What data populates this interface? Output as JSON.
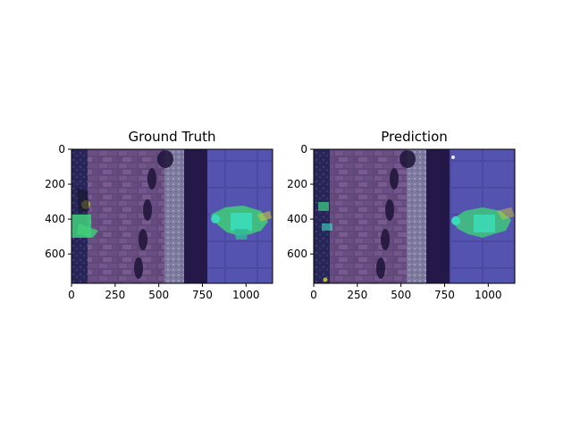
{
  "chart_data": [
    {
      "type": "image",
      "title": "Ground Truth",
      "xticks": [
        0,
        250,
        500,
        750,
        1000
      ],
      "yticks": [
        0,
        200,
        400,
        600
      ],
      "xlim": [
        0,
        1152
      ],
      "ylim": [
        768,
        0
      ],
      "image_description": "Aerial photo of a brick-paved pathway beside stone tiles with segmentation overlay; person segments in bright green/cyan on the right (~x 780-1130, y 340-520) and a person with green mask on the left edge (~x 0-160, y 200-520)."
    },
    {
      "type": "image",
      "title": "Prediction",
      "xticks": [
        0,
        250,
        500,
        750,
        1000
      ],
      "yticks": [
        0,
        200,
        400,
        600
      ],
      "xlim": [
        0,
        1152
      ],
      "ylim": [
        768,
        0
      ],
      "image_description": "Same aerial photo with predicted segmentation overlay; person segments on the right (~x 780-1150, y 330-520) and fainter partial masks on the left edge."
    }
  ],
  "colors": {
    "overlay_base": "#3a2a6e",
    "bricks": "#7a5a8a",
    "tiles": "#4a4aa0",
    "gravel": "#8a86a8",
    "mask_green": "#3fd07a",
    "mask_cyan": "#39e0c0",
    "mask_yellow": "#c8c83a"
  }
}
